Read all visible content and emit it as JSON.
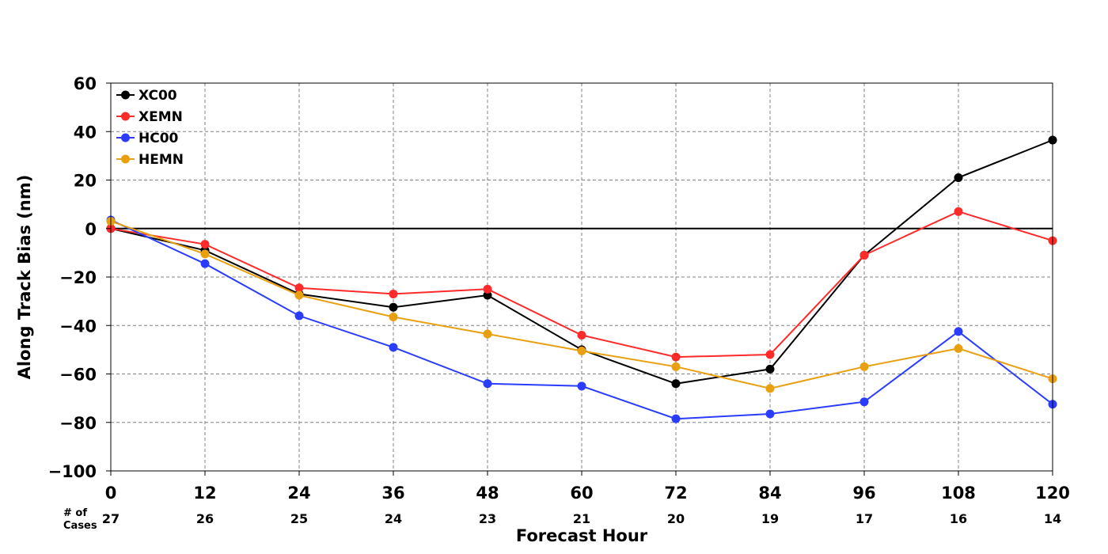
{
  "chart_data": {
    "type": "line",
    "xlabel": "Forecast Hour",
    "ylabel": "Along Track Bias (nm)",
    "x": [
      0,
      12,
      24,
      36,
      48,
      60,
      72,
      84,
      96,
      108,
      120
    ],
    "xlim": [
      0,
      120
    ],
    "ylim": [
      -100,
      60
    ],
    "x_ticks": [
      "0",
      "12",
      "24",
      "36",
      "48",
      "60",
      "72",
      "84",
      "96",
      "108",
      "120"
    ],
    "y_ticks": [
      60,
      40,
      20,
      0,
      -20,
      -40,
      -60,
      -80,
      -100
    ],
    "y_tick_labels": [
      "60",
      "40",
      "20",
      "0",
      "−20",
      "−40",
      "−60",
      "−80",
      "−100"
    ],
    "grid": true,
    "zero_line": true,
    "legend_position": "top-left",
    "cases_header": [
      "# of",
      "Cases"
    ],
    "cases": [
      "27",
      "26",
      "25",
      "24",
      "23",
      "21",
      "20",
      "19",
      "17",
      "16",
      "14"
    ],
    "series": [
      {
        "name": "XC00",
        "color": "#000000",
        "values": [
          0,
          -9,
          -27,
          -32.5,
          -27.5,
          -50,
          -64,
          -58,
          -11,
          21,
          36.5
        ]
      },
      {
        "name": "XEMN",
        "color": "#ff2a2a",
        "values": [
          0,
          -6.5,
          -24.5,
          -27,
          -25,
          -44,
          -53,
          -52,
          -11,
          7,
          -5
        ]
      },
      {
        "name": "HC00",
        "color": "#2a3dff",
        "values": [
          3.5,
          -14.5,
          -36,
          -49,
          -64,
          -65,
          -78.5,
          -76.5,
          -71.5,
          -42.5,
          -72.5
        ]
      },
      {
        "name": "HEMN",
        "color": "#e8a010",
        "values": [
          3,
          -10.5,
          -27.5,
          -36.5,
          -43.5,
          -50.5,
          -57,
          -66,
          -57,
          -49.5,
          -62
        ]
      }
    ]
  }
}
